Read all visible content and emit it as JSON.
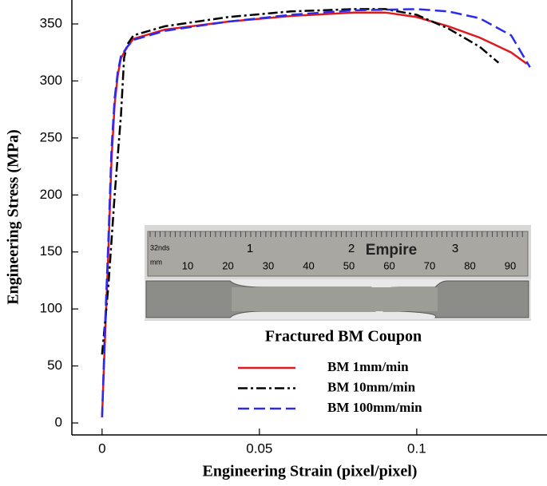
{
  "chart_data": {
    "type": "line",
    "xlabel": "Engineering Strain (pixel/pixel)",
    "ylabel": "Engineering Stress (MPa)",
    "xlim": [
      -0.0096,
      0.1414
    ],
    "ylim": [
      -10.5,
      371
    ],
    "xticks": [
      0,
      0.05,
      0.1
    ],
    "yticks": [
      0,
      50,
      100,
      150,
      200,
      250,
      300,
      350
    ],
    "legend": "lower right",
    "series": [
      {
        "name": "BM 1mm/min",
        "color": "#e0191e",
        "linestyle": "solid",
        "x": [
          0,
          0.001,
          0.002,
          0.003,
          0.004,
          0.005,
          0.006,
          0.008,
          0.01,
          0.02,
          0.04,
          0.06,
          0.08,
          0.09,
          0.1,
          0.11,
          0.12,
          0.13,
          0.135
        ],
        "values": [
          5,
          80,
          150,
          230,
          280,
          305,
          320,
          330,
          337,
          345,
          352,
          357,
          360,
          360,
          356,
          348,
          338,
          325,
          315
        ]
      },
      {
        "name": "BM 10mm/min",
        "color": "#000000",
        "linestyle": "dashdot",
        "x": [
          0,
          0.001,
          0.002,
          0.004,
          0.006,
          0.007,
          0.008,
          0.01,
          0.02,
          0.04,
          0.06,
          0.08,
          0.09,
          0.1,
          0.11,
          0.12,
          0.126
        ],
        "values": [
          60,
          90,
          120,
          200,
          270,
          320,
          332,
          340,
          348,
          356,
          361,
          363,
          363,
          358,
          346,
          330,
          316
        ]
      },
      {
        "name": "BM 100mm/min",
        "color": "#2b2bf0",
        "linestyle": "dashed",
        "x": [
          0,
          0.001,
          0.002,
          0.003,
          0.004,
          0.005,
          0.006,
          0.008,
          0.01,
          0.02,
          0.04,
          0.06,
          0.08,
          0.1,
          0.11,
          0.12,
          0.13,
          0.136
        ],
        "values": [
          5,
          90,
          160,
          240,
          285,
          308,
          322,
          330,
          336,
          344,
          352,
          358,
          362,
          363,
          361,
          355,
          340,
          312
        ]
      }
    ],
    "inset": {
      "caption": "Fractured BM Coupon",
      "brand": "Empire",
      "scale_labels": [
        "32nds",
        "mm"
      ],
      "inch_labels": [
        "1",
        "2",
        "3"
      ],
      "mm_labels": [
        "10",
        "20",
        "30",
        "40",
        "50",
        "60",
        "70",
        "80",
        "90"
      ]
    }
  }
}
